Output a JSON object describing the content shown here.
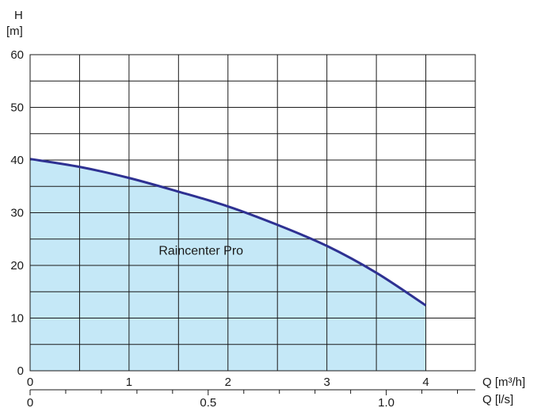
{
  "chart_data": {
    "type": "area",
    "ylabel_line1": "H",
    "ylabel_line2": "[m]",
    "xlabel": "Q [m³/h]",
    "xlabel2": "Q [l/s]",
    "xlim": [
      0,
      4.5
    ],
    "ylim": [
      0,
      60
    ],
    "x_ticks": [
      "0",
      "1",
      "2",
      "3",
      "4"
    ],
    "x2_ticks": [
      "0",
      "0.5",
      "1.0"
    ],
    "y_ticks": [
      "0",
      "10",
      "20",
      "30",
      "40",
      "50",
      "60"
    ],
    "grid": true,
    "series": [
      {
        "name": "Raincenter Pro",
        "x": [
          0,
          0.5,
          1,
          1.5,
          2,
          2.5,
          3,
          3.5,
          4
        ],
        "y": [
          40.2,
          38.7,
          36.6,
          34.0,
          31.2,
          27.7,
          23.7,
          18.6,
          12.4
        ],
        "line_color": "#2e3192",
        "fill_color": "#c5e8f7"
      }
    ],
    "annotations": [
      {
        "text": "Raincenter Pro",
        "x": 1.3,
        "y": 22
      }
    ]
  }
}
